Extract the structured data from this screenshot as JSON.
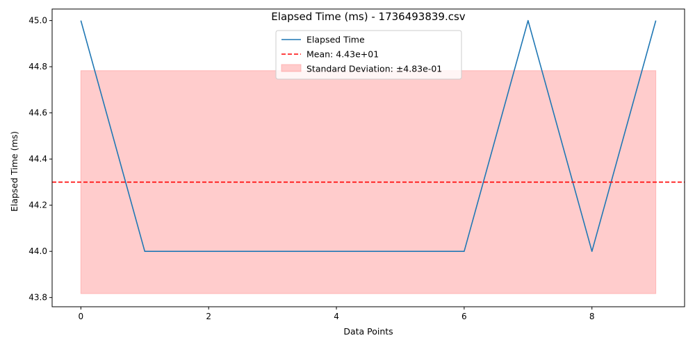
{
  "chart_data": {
    "type": "line",
    "title": "Elapsed Time (ms) - 1736493839.csv",
    "xlabel": "Data Points",
    "ylabel": "Elapsed Time (ms)",
    "xlim": [
      -0.45,
      9.45
    ],
    "ylim": [
      43.76,
      45.05
    ],
    "xticks": [
      0,
      2,
      4,
      6,
      8
    ],
    "xtick_labels": [
      "0",
      "2",
      "4",
      "6",
      "8"
    ],
    "yticks": [
      43.8,
      44.0,
      44.2,
      44.4,
      44.6,
      44.8,
      45.0
    ],
    "ytick_labels": [
      "43.8",
      "44.0",
      "44.2",
      "44.4",
      "44.6",
      "44.8",
      "45.0"
    ],
    "grid": false,
    "legend_position": "top-center",
    "series": [
      {
        "name": "Elapsed Time",
        "x": [
          0,
          1,
          2,
          3,
          4,
          5,
          6,
          7,
          8,
          9
        ],
        "values": [
          45,
          44,
          44,
          44,
          44,
          44,
          44,
          45,
          44,
          45
        ],
        "color": "#1f77b4"
      }
    ],
    "mean": {
      "label": "Mean: 4.43e+01",
      "value": 44.3,
      "color": "#ff0000"
    },
    "std_band": {
      "label": "Standard Deviation: ±4.83e-01",
      "lower": 43.817,
      "upper": 44.783,
      "x": [
        0,
        9
      ],
      "color": "#ff9999"
    }
  }
}
